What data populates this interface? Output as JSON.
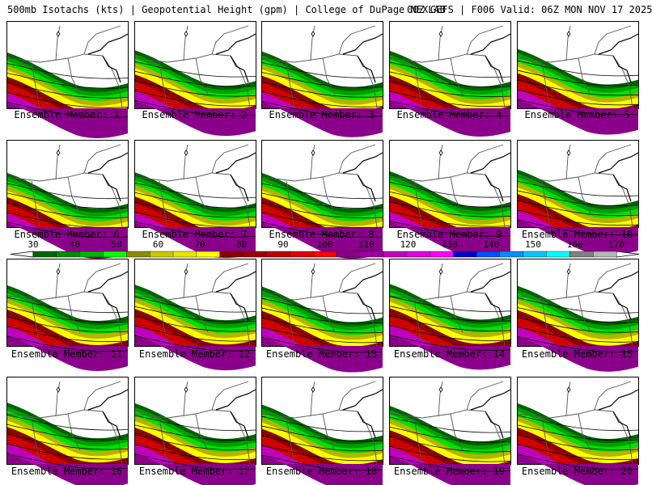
{
  "header": {
    "left": "500mb Isotachs (kts) | Geopotential Height (gpm) | College of DuPage NEXLAB",
    "right": "00Z GEFS | F006 Valid: 06Z MON NOV 17 2025"
  },
  "members": [
    {
      "label": "Ensemble Member: 1",
      "extent": 0.55
    },
    {
      "label": "Ensemble Member: 2",
      "extent": 0.62
    },
    {
      "label": "Ensemble Member: 3",
      "extent": 0.58
    },
    {
      "label": "Ensemble Member: 4",
      "extent": 0.6
    },
    {
      "label": "Ensemble Member: 5",
      "extent": 0.66
    },
    {
      "label": "Ensemble Member: 6",
      "extent": 0.5
    },
    {
      "label": "Ensemble Member: 7",
      "extent": 0.52
    },
    {
      "label": "Ensemble Member: 8",
      "extent": 0.5
    },
    {
      "label": "Ensemble Member: 9",
      "extent": 0.55
    },
    {
      "label": "Ensemble Member: 10",
      "extent": 0.6
    },
    {
      "label": "Ensemble Member: 11",
      "extent": 0.7
    },
    {
      "label": "Ensemble Member: 12",
      "extent": 0.72
    },
    {
      "label": "Ensemble Member: 13",
      "extent": 0.66
    },
    {
      "label": "Ensemble Member: 14",
      "extent": 0.74
    },
    {
      "label": "Ensemble Member: 15",
      "extent": 0.68
    },
    {
      "label": "Ensemble Member: 16",
      "extent": 0.72
    },
    {
      "label": "Ensemble Member: 17",
      "extent": 0.7
    },
    {
      "label": "Ensemble Member: 18",
      "extent": 0.66
    },
    {
      "label": "Ensemble Member: 19",
      "extent": 0.62
    },
    {
      "label": "Ensemble Member: 20",
      "extent": 0.7
    }
  ],
  "colorbar": {
    "labels": [
      "30",
      "40",
      "50",
      "60",
      "70",
      "80",
      "90",
      "100",
      "110",
      "120",
      "130",
      "140",
      "150",
      "160",
      "170"
    ],
    "colors": [
      "#006400",
      "#008c00",
      "#00b400",
      "#00ff00",
      "#8c8c00",
      "#c8c800",
      "#e6e600",
      "#ffff00",
      "#8b0000",
      "#a00000",
      "#c00000",
      "#e00000",
      "#ff0000",
      "#8b008b",
      "#a000a0",
      "#c000c0",
      "#e000e0",
      "#ff00ff",
      "#0000c8",
      "#0050ff",
      "#0090ff",
      "#00c8ff",
      "#00ffff",
      "#808080",
      "#b4b4b4"
    ]
  },
  "field_colors": {
    "dkgreen": "#006400",
    "green": "#00a000",
    "ltgreen": "#00e000",
    "olive": "#b4b400",
    "yellow": "#ffff00",
    "dkred": "#8b0000",
    "red": "#d00000",
    "magenta": "#c000c0",
    "purple": "#8b008b",
    "water": "#ffffff"
  }
}
